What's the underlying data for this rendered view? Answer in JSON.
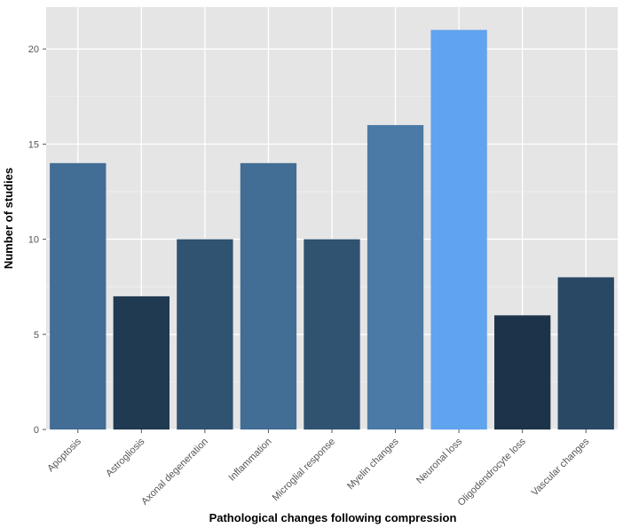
{
  "chart_data": {
    "type": "bar",
    "title": "",
    "xlabel": "Pathological changes following compression",
    "ylabel": "Number of studies",
    "categories": [
      "Apoptosis",
      "Astrogliosis",
      "Axonal degeneration",
      "Inflammation",
      "Microglial response",
      "Myelin changes",
      "Neuronal loss",
      "Oligodendrocyte loss",
      "Vascular changes"
    ],
    "values": [
      14,
      7,
      10,
      14,
      10,
      16,
      21,
      6,
      8
    ],
    "ylim": [
      0,
      22.2
    ],
    "yticks": [
      0,
      5,
      10,
      15,
      20
    ],
    "grid": true,
    "legend": "none",
    "colors": {
      "panel_background": "#e5e5e5",
      "grid_major": "#ffffff",
      "grid_minor": "#f0f0f0",
      "bars": [
        "#426d94",
        "#203a52",
        "#2f5370",
        "#426d94",
        "#2f5370",
        "#4b7aa6",
        "#60a3ef",
        "#1d334a",
        "#294863"
      ]
    }
  }
}
